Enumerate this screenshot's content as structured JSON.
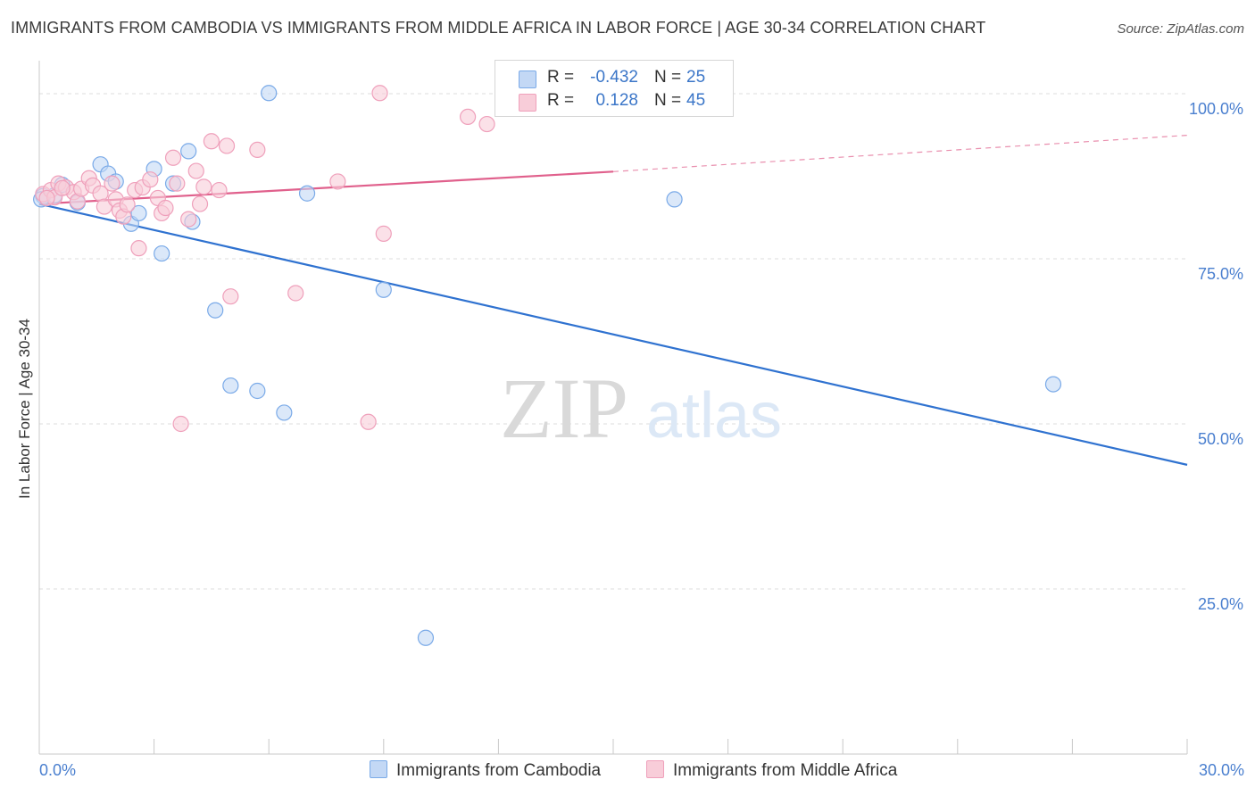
{
  "title": "IMMIGRANTS FROM CAMBODIA VS IMMIGRANTS FROM MIDDLE AFRICA IN LABOR FORCE | AGE 30-34 CORRELATION CHART",
  "source": "Source: ZipAtlas.com",
  "watermark": {
    "zip": "ZIP",
    "atlas": "atlas"
  },
  "legend": {
    "rows": [
      {
        "r_label": "R =",
        "r_value": "-0.432",
        "n_label": "N =",
        "n_value": "25"
      },
      {
        "r_label": "R =",
        "r_value": "0.128",
        "n_label": "N =",
        "n_value": "45"
      }
    ]
  },
  "bottom_legend": [
    "Immigrants from Cambodia",
    "Immigrants from Middle Africa"
  ],
  "chart_data": {
    "type": "scatter",
    "title": "IMMIGRANTS FROM CAMBODIA VS IMMIGRANTS FROM MIDDLE AFRICA IN LABOR FORCE | AGE 30-34 CORRELATION CHART",
    "xlabel": "",
    "ylabel": "In Labor Force | Age 30-34",
    "xlim": [
      0,
      30
    ],
    "ylim": [
      0,
      105
    ],
    "x_tick_labels": [
      "0.0%",
      "30.0%"
    ],
    "y_ticks": [
      25,
      50,
      75,
      100
    ],
    "y_tick_labels": [
      "25.0%",
      "50.0%",
      "75.0%",
      "100.0%"
    ],
    "grid": true,
    "series": [
      {
        "name": "Immigrants from Cambodia",
        "color": "#7aaae8",
        "fill": "#c3d8f5",
        "trend_color": "#2f72d0",
        "points": [
          [
            0.1,
            84.5
          ],
          [
            0.4,
            84.6
          ],
          [
            0.6,
            86.2
          ],
          [
            1.0,
            83.5
          ],
          [
            1.6,
            89.3
          ],
          [
            1.8,
            87.9
          ],
          [
            2.0,
            86.7
          ],
          [
            2.4,
            80.3
          ],
          [
            2.6,
            81.9
          ],
          [
            3.0,
            88.6
          ],
          [
            3.2,
            75.8
          ],
          [
            3.5,
            86.4
          ],
          [
            3.9,
            91.3
          ],
          [
            4.0,
            80.6
          ],
          [
            4.6,
            67.2
          ],
          [
            5.0,
            55.8
          ],
          [
            5.7,
            55.0
          ],
          [
            6.0,
            100.1
          ],
          [
            6.4,
            51.7
          ],
          [
            7.0,
            84.9
          ],
          [
            9.0,
            70.3
          ],
          [
            10.1,
            17.6
          ],
          [
            16.6,
            84.0
          ],
          [
            26.5,
            56.0
          ],
          [
            0.05,
            84.0
          ]
        ],
        "trend": {
          "x": [
            0,
            30
          ],
          "y": [
            83.3,
            43.8
          ]
        }
      },
      {
        "name": "Immigrants from Middle Africa",
        "color": "#efa0bb",
        "fill": "#f8cdd9",
        "trend_color": "#e0608c",
        "points": [
          [
            0.1,
            84.8
          ],
          [
            0.3,
            85.4
          ],
          [
            0.4,
            84.3
          ],
          [
            0.5,
            86.4
          ],
          [
            0.7,
            85.8
          ],
          [
            0.9,
            85.1
          ],
          [
            1.0,
            83.7
          ],
          [
            1.1,
            85.6
          ],
          [
            1.3,
            87.2
          ],
          [
            1.4,
            86.1
          ],
          [
            1.6,
            84.9
          ],
          [
            1.7,
            82.9
          ],
          [
            1.9,
            86.4
          ],
          [
            2.0,
            84.0
          ],
          [
            2.1,
            82.3
          ],
          [
            2.2,
            81.4
          ],
          [
            2.3,
            83.2
          ],
          [
            2.5,
            85.4
          ],
          [
            2.6,
            76.6
          ],
          [
            2.7,
            85.8
          ],
          [
            2.9,
            87.0
          ],
          [
            3.1,
            84.2
          ],
          [
            3.2,
            81.9
          ],
          [
            3.3,
            82.7
          ],
          [
            3.5,
            90.3
          ],
          [
            3.6,
            86.4
          ],
          [
            3.7,
            50.0
          ],
          [
            3.9,
            81.0
          ],
          [
            4.1,
            88.3
          ],
          [
            4.2,
            83.3
          ],
          [
            4.3,
            85.9
          ],
          [
            4.5,
            92.8
          ],
          [
            4.7,
            85.4
          ],
          [
            4.9,
            92.1
          ],
          [
            5.0,
            69.3
          ],
          [
            5.7,
            91.5
          ],
          [
            6.7,
            69.8
          ],
          [
            7.8,
            86.7
          ],
          [
            8.6,
            50.3
          ],
          [
            8.9,
            100.1
          ],
          [
            9.0,
            78.8
          ],
          [
            11.2,
            96.5
          ],
          [
            11.7,
            95.4
          ],
          [
            0.2,
            84.2
          ],
          [
            0.6,
            85.7
          ]
        ],
        "trend": {
          "x": [
            0,
            15
          ],
          "y": [
            83.3,
            88.2
          ]
        },
        "trend_extension": {
          "x": [
            15,
            30
          ],
          "y": [
            88.2,
            93.7
          ]
        }
      }
    ]
  }
}
